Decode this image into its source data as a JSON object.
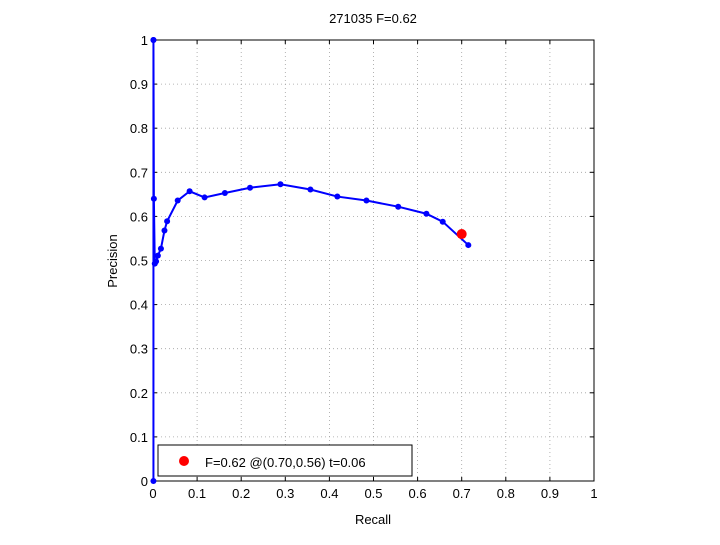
{
  "chart_data": {
    "type": "line",
    "title": "271035 F=0.62",
    "xlabel": "Recall",
    "ylabel": "Precision",
    "xlim": [
      0,
      1
    ],
    "ylim": [
      0,
      1
    ],
    "xticks": [
      0,
      0.1,
      0.2,
      0.3,
      0.4,
      0.5,
      0.6,
      0.7,
      0.8,
      0.9,
      1
    ],
    "yticks": [
      0,
      0.1,
      0.2,
      0.3,
      0.4,
      0.5,
      0.6,
      0.7,
      0.8,
      0.9,
      1
    ],
    "xtick_labels": [
      "0",
      "0.1",
      "0.2",
      "0.3",
      "0.4",
      "0.5",
      "0.6",
      "0.7",
      "0.8",
      "0.9",
      "1"
    ],
    "ytick_labels": [
      "0",
      "0.1",
      "0.2",
      "0.3",
      "0.4",
      "0.5",
      "0.6",
      "0.7",
      "0.8",
      "0.9",
      "1"
    ],
    "grid": true,
    "legend_position": "bottom-left",
    "series": [
      {
        "color": "#0000ff",
        "x": [
          0.715,
          0.657,
          0.62,
          0.556,
          0.484,
          0.418,
          0.357,
          0.289,
          0.22,
          0.163,
          0.117,
          0.083,
          0.056,
          0.032,
          0.026,
          0.018,
          0.011,
          0.007,
          0.004,
          0.002,
          0.001,
          0.001,
          0.001
        ],
        "y": [
          0.535,
          0.588,
          0.606,
          0.622,
          0.636,
          0.645,
          0.661,
          0.673,
          0.665,
          0.653,
          0.643,
          0.657,
          0.636,
          0.589,
          0.568,
          0.527,
          0.511,
          0.498,
          0.493,
          0.64,
          1.0,
          0.0,
          1.0
        ]
      }
    ],
    "best_point": {
      "recall": 0.7,
      "precision": 0.56,
      "color": "#ff0000",
      "legend_label": "F=0.62 @(0.70,0.56) t=0.06"
    }
  }
}
